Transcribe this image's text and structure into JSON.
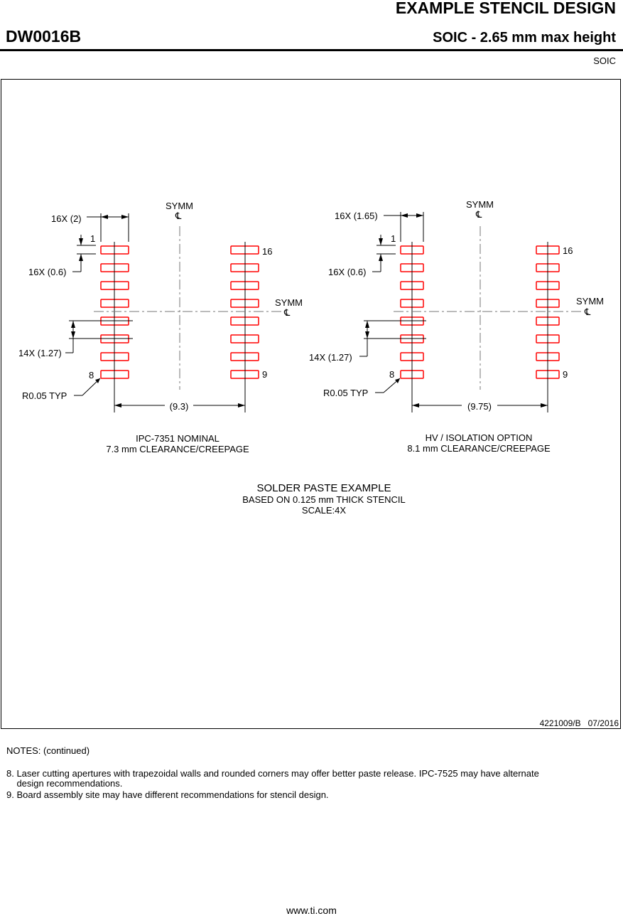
{
  "header": {
    "title": "EXAMPLE STENCIL DESIGN",
    "package_id": "DW0016B",
    "subtitle": "SOIC - 2.65 mm max height",
    "package_type": "SOIC"
  },
  "drawing": {
    "symm_label": "SYMM",
    "centerline_symbol": "℄",
    "left": {
      "pad_width": "16X (2)",
      "pad_height": "16X (0.6)",
      "pitch": "14X (1.27)",
      "radius": "R0.05 TYP",
      "span": "(9.3)",
      "pin_1": "1",
      "pin_8": "8",
      "pin_9": "9",
      "pin_16": "16",
      "caption_1": "IPC-7351 NOMINAL",
      "caption_2": "7.3 mm CLEARANCE/CREEPAGE"
    },
    "right": {
      "pad_width": "16X (1.65)",
      "pad_height": "16X (0.6)",
      "pitch": "14X (1.27)",
      "radius": "R0.05 TYP",
      "span": "(9.75)",
      "pin_1": "1",
      "pin_8": "8",
      "pin_9": "9",
      "pin_16": "16",
      "caption_1": "HV / ISOLATION OPTION",
      "caption_2": "8.1 mm CLEARANCE/CREEPAGE"
    },
    "example_title": "SOLDER PASTE EXAMPLE",
    "example_line_2": "BASED ON 0.125 mm THICK STENCIL",
    "example_scale": "SCALE:4X",
    "pad_color": "#ff0000"
  },
  "footer_id": "4221009/B   07/2016",
  "notes": {
    "heading": "NOTES: (continued)",
    "items": [
      "8. Laser cutting apertures with trapezoidal walls and rounded corners may offer better paste release. IPC-7525 may have alternate",
      "    design recommendations.",
      "9. Board assembly site may have different recommendations for stencil design."
    ]
  },
  "url": "www.ti.com"
}
